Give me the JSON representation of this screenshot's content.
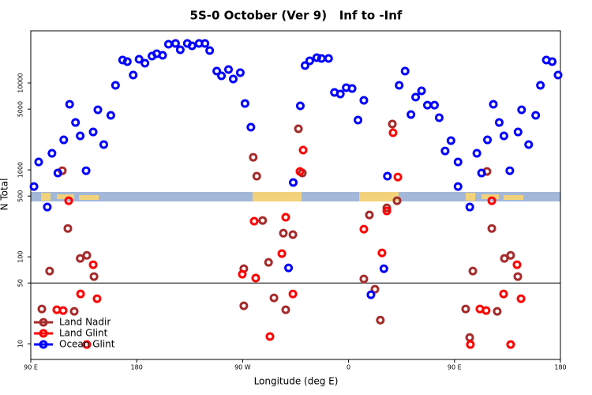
{
  "chart_data": {
    "type": "scatter",
    "title": "5S-0 October (Ver 9)   Inf to -Inf",
    "x_label": "Longitude (deg E)",
    "y_label": "N Total",
    "log_y": true,
    "xlim": [
      90,
      540
    ],
    "xticks": [
      {
        "value": 90,
        "label": "90 E"
      },
      180,
      {
        "value": 270,
        "label": "90 W"
      },
      {
        "value": 360,
        "label": "0"
      },
      {
        "value": 450,
        "label": "90 E"
      },
      {
        "value": 540,
        "label": "180"
      }
    ],
    "ylim": [
      6.6,
      39800
    ],
    "yticks": [
      10,
      50,
      100,
      500,
      1000,
      5000,
      10000
    ],
    "hline": 50,
    "legend": "bottom left",
    "series": [
      {
        "name": "Land Nadir",
        "color": "#a52a2a",
        "x": [
          116.8,
          106,
          121.5,
          132,
          137.6,
          143.7,
          99.4,
          126.9,
          271,
          271,
          279,
          282,
          287,
          292,
          296.6,
          304.6,
          312.7,
          306.6,
          317.4,
          320.7,
          373,
          377.7,
          382.4,
          387,
          392.5,
          397.2,
          401.2,
          459.5,
          462.9,
          465.6,
          477.6,
          481.7,
          486.3,
          492.4,
          497.7,
          503.8
        ],
        "values": [
          979,
          68.6,
          212,
          95.9,
          104,
          59.3,
          25.1,
          23.6,
          73,
          27.3,
          1397,
          846,
          262,
          86.3,
          33.7,
          187,
          180,
          24.6,
          2970,
          920,
          55.6,
          303,
          42.4,
          18.7,
          366,
          3370,
          442,
          25.1,
          11.8,
          68.6,
          959,
          212,
          23.6,
          95.9,
          104,
          59.3
        ]
      },
      {
        "name": "Land Glint",
        "color": "#ff0000",
        "x": [
          122.2,
          112.1,
          117.5,
          132.3,
          137.6,
          143,
          146.3,
          269.7,
          279.8,
          281.1,
          293.2,
          303.3,
          306.6,
          312.7,
          318.7,
          321.4,
          373,
          388.4,
          392.5,
          397.8,
          401.9,
          471.6,
          476.9,
          463.5,
          481.7,
          491.7,
          497.7,
          503.1,
          506.5
        ],
        "values": [
          442,
          24.6,
          24.1,
          37.4,
          9.8,
          81.1,
          33,
          63.1,
          257,
          56.9,
          12.1,
          109,
          285,
          37.4,
          959,
          1688,
          208,
          111,
          337,
          2675,
          828,
          25.1,
          24.1,
          9.8,
          442,
          37.4,
          9.8,
          81.1,
          33
        ]
      },
      {
        "name": "Ocean Glint",
        "color": "#0000ff",
        "x": [
          92.7,
          96.7,
          104,
          108,
          113,
          118,
          123,
          128,
          132,
          137,
          143,
          147,
          152,
          158,
          162,
          168,
          172,
          177,
          182,
          187,
          193,
          197,
          202,
          207,
          213,
          217,
          223,
          227,
          233,
          238,
          242,
          248,
          252,
          258,
          262,
          268,
          272,
          277,
          309,
          313,
          319,
          323,
          327,
          333,
          337,
          343,
          348,
          353,
          358,
          363,
          368,
          373,
          379,
          390,
          393,
          403,
          408,
          413,
          417,
          422,
          427,
          433,
          437,
          442,
          447,
          453,
          453,
          463,
          469,
          473,
          478,
          483,
          488,
          492,
          497,
          504,
          507,
          513,
          519,
          523,
          528,
          533,
          538
        ],
        "values": [
          644,
          1233,
          374,
          1552,
          920,
          2215,
          5685,
          3510,
          2460,
          979,
          2730,
          4910,
          1954,
          4240,
          9390,
          18350,
          17590,
          12330,
          18750,
          16870,
          20370,
          21690,
          20800,
          27870,
          28480,
          24100,
          28480,
          26730,
          28480,
          28480,
          23600,
          13680,
          12080,
          14290,
          11100,
          13120,
          5800,
          3100,
          74.6,
          716,
          5450,
          15850,
          17990,
          19540,
          19140,
          19140,
          7780,
          7460,
          8820,
          8630,
          3740,
          6310,
          36.6,
          73,
          846,
          9390,
          13680,
          4330,
          6860,
          8110,
          5560,
          5560,
          3980,
          1652,
          2170,
          1233,
          644,
          374,
          1552,
          920,
          2215,
          5685,
          3510,
          2460,
          979,
          2730,
          4910,
          1954,
          4240,
          9390,
          18350,
          17590,
          12330
        ]
      }
    ]
  }
}
